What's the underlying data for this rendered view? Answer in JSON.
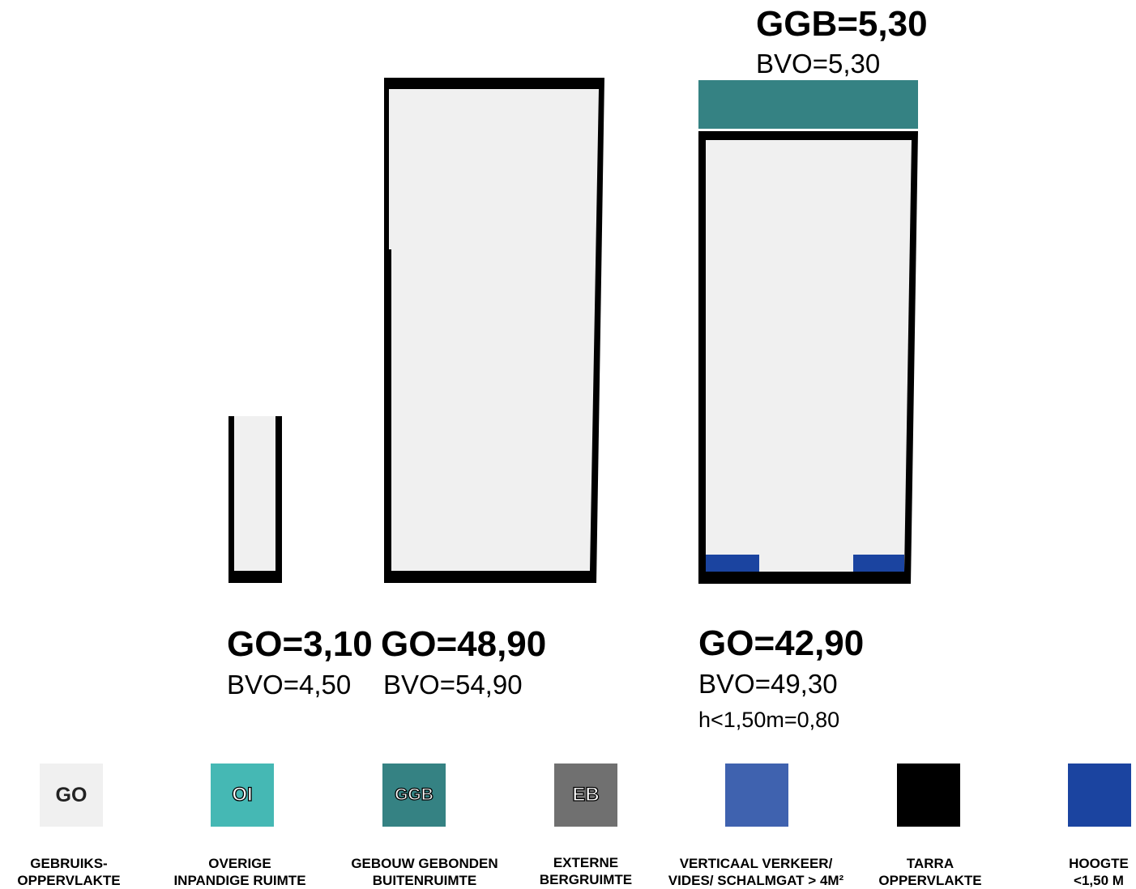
{
  "colors": {
    "go": "#f0f0f0",
    "oi": "#45b8b4",
    "ggb": "#358283",
    "eb": "#707070",
    "vv": "#3f62af",
    "tarra": "#000000",
    "hoogte": "#1b44a0"
  },
  "units": [
    {
      "go": "GO=3,10",
      "bvo": "BVO=4,50"
    },
    {
      "go": "GO=48,90",
      "bvo": "BVO=54,90"
    },
    {
      "go": "GO=42,90",
      "bvo": "BVO=49,30",
      "extra": "h<1,50m=0,80",
      "ggb": "GGB=5,30",
      "ggb_bvo": "BVO=5,30"
    }
  ],
  "legend": [
    {
      "code": "GO",
      "line1": "GEBRUIKS-",
      "line2": "OPPERVLAKTE"
    },
    {
      "code": "OI",
      "line1": "OVERIGE",
      "line2": "INPANDIGE RUIMTE"
    },
    {
      "code": "GGB",
      "line1": "GEBOUW GEBONDEN",
      "line2": "BUITENRUIMTE"
    },
    {
      "code": "EB",
      "line1": "EXTERNE",
      "line2": "BERGRUIMTE"
    },
    {
      "code": "",
      "line1": "VERTICAAL VERKEER/",
      "line2": "VIDES/ SCHALMGAT > 4M²"
    },
    {
      "code": "",
      "line1": "TARRA",
      "line2": "OPPERVLAKTE"
    },
    {
      "code": "",
      "line1": "HOOGTE",
      "line2": "<1,50 M"
    }
  ]
}
